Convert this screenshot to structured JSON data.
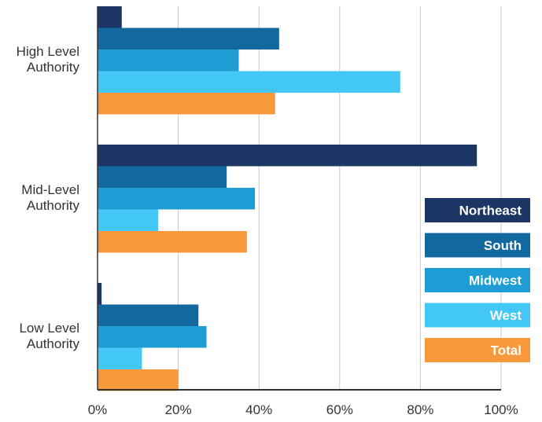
{
  "chart_data": {
    "type": "bar",
    "orientation": "horizontal",
    "categories": [
      [
        "High Level",
        "Authority"
      ],
      [
        "Mid-Level",
        "Authority"
      ],
      [
        "Low Level",
        "Authority"
      ]
    ],
    "series": [
      {
        "name": "Northeast",
        "color": "#1b3564",
        "values": [
          6,
          94,
          1
        ]
      },
      {
        "name": "South",
        "color": "#1468a0",
        "values": [
          45,
          32,
          25
        ]
      },
      {
        "name": "Midwest",
        "color": "#1d9dd3",
        "values": [
          35,
          39,
          27
        ]
      },
      {
        "name": "West",
        "color": "#43c7f4",
        "values": [
          75,
          15,
          11
        ]
      },
      {
        "name": "Total",
        "color": "#f7993a",
        "values": [
          44,
          37,
          20
        ]
      }
    ],
    "xticks": [
      "0%",
      "20%",
      "40%",
      "60%",
      "80%",
      "100%"
    ],
    "xlim": [
      0,
      100
    ],
    "grid": "vertical",
    "legend_position": "right"
  }
}
